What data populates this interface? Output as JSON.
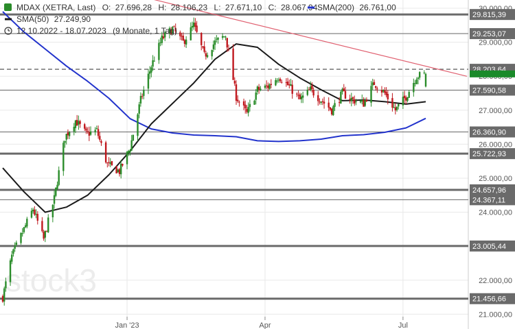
{
  "colors": {
    "up": "#2a8c2a",
    "down": "#c0181e",
    "sma50": "#1a1a1a",
    "sma200": "#2233cc",
    "trend": "#e06070",
    "level": "#666666",
    "last_price_tag": "#1a8a2a",
    "grid": "#e8e8e8"
  },
  "legend": {
    "title": "MDAX (XETRA, Last)",
    "o_label": "O:",
    "o_value": "27.696,28",
    "h_label": "H:",
    "h_value": "28.106,23",
    "l_label": "L:",
    "l_value": "27.671,10",
    "c_label": "C:",
    "c_value": "28.067,94",
    "sma200_label": "SMA(200)",
    "sma200_value": "26.761,00",
    "sma50_label": "SMA(50)",
    "sma50_value": "27.249,90",
    "range": "12.10.2022 - 18.07.2023",
    "period": "(9 Monate, 1 Tag)"
  },
  "watermark": "stock3",
  "chart_data": {
    "type": "candlestick",
    "title": "MDAX (XETRA, Last)",
    "date_range": [
      "2022-10-12",
      "2023-07-18"
    ],
    "interval": "1 day",
    "ylim": [
      20800,
      30200
    ],
    "y_scale": "linear",
    "y_ticks": [
      {
        "value": 21000,
        "label": "21.000,00"
      },
      {
        "value": 22000,
        "label": "22.000,00"
      },
      {
        "value": 23000,
        "label": "23.000,00"
      },
      {
        "value": 24000,
        "label": "24.000,00"
      },
      {
        "value": 25000,
        "label": "25.000,00"
      },
      {
        "value": 26000,
        "label": "26.000,00"
      },
      {
        "value": 27000,
        "label": "27.000,00"
      },
      {
        "value": 28000,
        "label": "28.000,00"
      },
      {
        "value": 29000,
        "label": "29.000,00"
      },
      {
        "value": 30000,
        "label": "30.000,00"
      }
    ],
    "x_ticks": [
      {
        "date": "2023-01-02",
        "label": "Jan '23"
      },
      {
        "date": "2023-04-03",
        "label": "Apr"
      },
      {
        "date": "2023-07-03",
        "label": "Jul"
      }
    ],
    "last_candle": {
      "open": 27696.28,
      "high": 28106.23,
      "low": 27671.1,
      "close": 28067.94
    },
    "levels": [
      {
        "value": 29815.39,
        "label": "29.815,39",
        "weight": "heavy"
      },
      {
        "value": 29253.07,
        "label": "29.253,07",
        "weight": "thin"
      },
      {
        "value": 28203.64,
        "label": "28.203,64",
        "weight": "dashed"
      },
      {
        "value": 27590.58,
        "label": "27.590,58",
        "weight": "thin"
      },
      {
        "value": 26360.9,
        "label": "26.360,90",
        "weight": "thin"
      },
      {
        "value": 25722.93,
        "label": "25.722,93",
        "weight": "heavy"
      },
      {
        "value": 24657.96,
        "label": "24.657,96",
        "weight": "heavy"
      },
      {
        "value": 24367.11,
        "label": "24.367,11",
        "weight": "thin"
      },
      {
        "value": 23005.44,
        "label": "23.005,44",
        "weight": "heavy"
      },
      {
        "value": 21456.66,
        "label": "21.456,66",
        "weight": "heavy"
      }
    ],
    "trendline": [
      {
        "date": "2023-01-20",
        "value": 30250
      },
      {
        "date": "2023-07-18",
        "value": 28200
      }
    ],
    "series": [
      {
        "name": "SMA(50)",
        "values": [
          [
            "2022-10-12",
            25300
          ],
          [
            "2022-10-26",
            24600
          ],
          [
            "2022-11-09",
            24000
          ],
          [
            "2022-11-23",
            24150
          ],
          [
            "2022-12-07",
            24500
          ],
          [
            "2022-12-21",
            25100
          ],
          [
            "2023-01-04",
            25800
          ],
          [
            "2023-01-18",
            26600
          ],
          [
            "2023-02-01",
            27200
          ],
          [
            "2023-02-15",
            27800
          ],
          [
            "2023-03-01",
            28500
          ],
          [
            "2023-03-15",
            28950
          ],
          [
            "2023-03-29",
            28850
          ],
          [
            "2023-04-12",
            28350
          ],
          [
            "2023-04-26",
            27950
          ],
          [
            "2023-05-10",
            27600
          ],
          [
            "2023-05-24",
            27280
          ],
          [
            "2023-06-07",
            27300
          ],
          [
            "2023-06-21",
            27250
          ],
          [
            "2023-07-05",
            27180
          ],
          [
            "2023-07-18",
            27250
          ]
        ]
      },
      {
        "name": "SMA(200)",
        "values": [
          [
            "2022-10-12",
            29900
          ],
          [
            "2022-10-26",
            29300
          ],
          [
            "2022-11-09",
            28800
          ],
          [
            "2022-11-23",
            28300
          ],
          [
            "2022-12-07",
            27850
          ],
          [
            "2022-12-21",
            27350
          ],
          [
            "2023-01-04",
            26750
          ],
          [
            "2023-01-18",
            26450
          ],
          [
            "2023-02-01",
            26330
          ],
          [
            "2023-02-15",
            26270
          ],
          [
            "2023-03-01",
            26250
          ],
          [
            "2023-03-15",
            26220
          ],
          [
            "2023-03-29",
            26100
          ],
          [
            "2023-04-12",
            26080
          ],
          [
            "2023-04-26",
            26100
          ],
          [
            "2023-05-10",
            26150
          ],
          [
            "2023-05-24",
            26250
          ],
          [
            "2023-06-07",
            26280
          ],
          [
            "2023-06-21",
            26350
          ],
          [
            "2023-07-05",
            26480
          ],
          [
            "2023-07-18",
            26761
          ]
        ]
      }
    ],
    "price_path": [
      [
        "2022-10-12",
        21500
      ],
      [
        "2022-10-18",
        22700
      ],
      [
        "2022-10-25",
        23400
      ],
      [
        "2022-11-01",
        24100
      ],
      [
        "2022-11-08",
        23200
      ],
      [
        "2022-11-15",
        24400
      ],
      [
        "2022-11-22",
        26200
      ],
      [
        "2022-11-29",
        26700
      ],
      [
        "2022-12-06",
        26300
      ],
      [
        "2022-12-13",
        26400
      ],
      [
        "2022-12-20",
        25400
      ],
      [
        "2022-12-28",
        25200
      ],
      [
        "2023-01-04",
        25900
      ],
      [
        "2023-01-11",
        27300
      ],
      [
        "2023-01-18",
        28300
      ],
      [
        "2023-01-25",
        29100
      ],
      [
        "2023-02-01",
        29400
      ],
      [
        "2023-02-08",
        29000
      ],
      [
        "2023-02-15",
        29500
      ],
      [
        "2023-02-22",
        28600
      ],
      [
        "2023-03-01",
        29000
      ],
      [
        "2023-03-08",
        29200
      ],
      [
        "2023-03-15",
        27400
      ],
      [
        "2023-03-22",
        26900
      ],
      [
        "2023-03-29",
        27600
      ],
      [
        "2023-04-05",
        27700
      ],
      [
        "2023-04-12",
        28000
      ],
      [
        "2023-04-19",
        27700
      ],
      [
        "2023-04-26",
        27300
      ],
      [
        "2023-05-03",
        27600
      ],
      [
        "2023-05-10",
        27300
      ],
      [
        "2023-05-17",
        27000
      ],
      [
        "2023-05-24",
        27500
      ],
      [
        "2023-05-31",
        27300
      ],
      [
        "2023-06-07",
        27200
      ],
      [
        "2023-06-14",
        27800
      ],
      [
        "2023-06-21",
        27500
      ],
      [
        "2023-06-28",
        27000
      ],
      [
        "2023-07-05",
        27400
      ],
      [
        "2023-07-12",
        28000
      ],
      [
        "2023-07-18",
        28068
      ]
    ]
  }
}
